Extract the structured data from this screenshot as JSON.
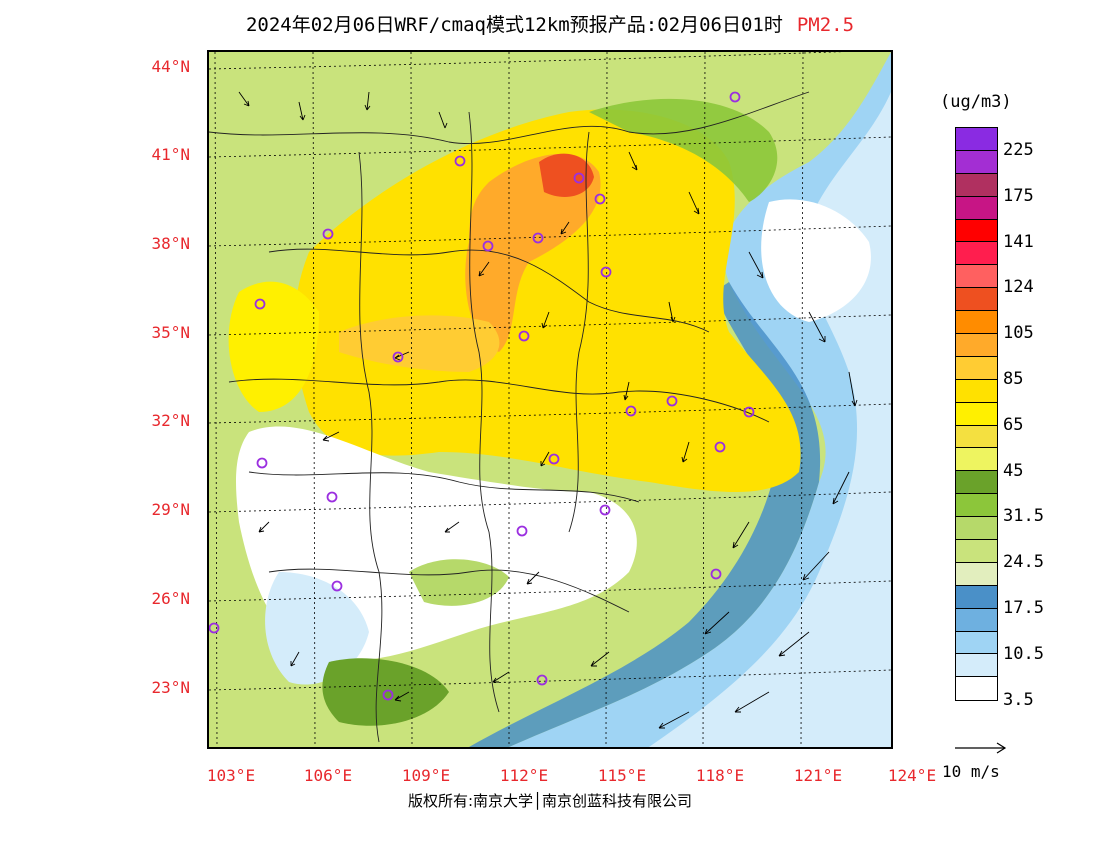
{
  "title": {
    "main": "2024年02月06日WRF/cmaq模式12km预报产品:02月06日01时",
    "pollutant": "PM2.5"
  },
  "axes": {
    "lat_labels": [
      "44°N",
      "41°N",
      "38°N",
      "35°N",
      "32°N",
      "29°N",
      "26°N",
      "23°N"
    ],
    "lon_labels": [
      "103°E",
      "106°E",
      "109°E",
      "112°E",
      "115°E",
      "118°E",
      "121°E",
      "124°E"
    ]
  },
  "legend": {
    "units": "(ug/m3)",
    "colors": [
      "#8a2be2",
      "#a32ed3",
      "#b03060",
      "#c71585",
      "#ff0000",
      "#ff1e4e",
      "#ff6060",
      "#ee5020",
      "#ff8c00",
      "#ffaa2a",
      "#ffcc33",
      "#ffe100",
      "#fff000",
      "#f4e040",
      "#eef460",
      "#6aa22a",
      "#8cc63a",
      "#b6d96a",
      "#c9e37c",
      "#e2eebe",
      "#4a90c8",
      "#6eb0e0",
      "#9fd4f4",
      "#d4ecfa",
      "#ffffff"
    ],
    "labels": [
      "225",
      "175",
      "141",
      "124",
      "105",
      "85",
      "65",
      "45",
      "31.5",
      "24.5",
      "17.5",
      "10.5",
      "3.5"
    ],
    "wind_ref": "10 m/s"
  },
  "copyright": "版权所有:南京大学│南京创蓝科技有限公司"
}
